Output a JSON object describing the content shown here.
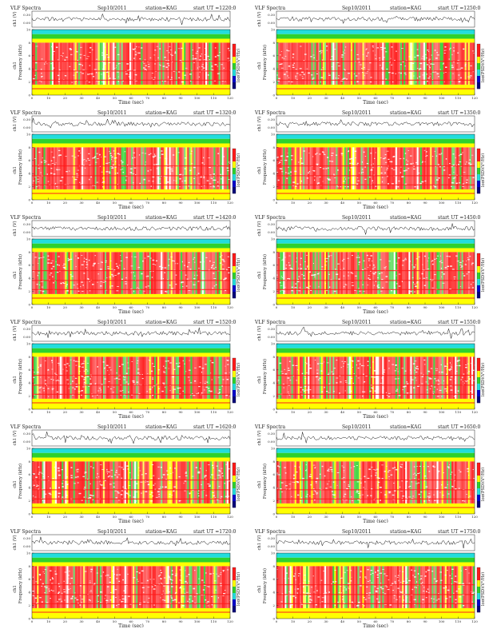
{
  "figure": {
    "header": {
      "title": "VLF Spectra",
      "date": "Sep10/2011",
      "station": "station=KAG",
      "start_label": "start UT ="
    },
    "waveform_ylabel": "ch1 (V)",
    "waveform_ticks": [
      "0.00",
      "0.30"
    ],
    "spectrogram_ylabel": "Frequency (kHz)",
    "spectrogram_ylabel_prefix": "ch1",
    "colorbar_label": "log(PSD)(V²/Hz)",
    "xlabel": "Time (sec)",
    "colors": {
      "red": "#ff1a1a",
      "yellow": "#ffff00",
      "green": "#2ed12e",
      "cyan": "#22dddd",
      "blue": "#0000cc",
      "darkblue": "#00007a",
      "axis": "#222222"
    }
  },
  "chart_data": [
    {
      "type": "heatmap",
      "start_ut": "1220:0",
      "x_ticks": [
        0,
        10,
        20,
        30,
        40,
        50,
        60,
        70,
        80,
        90,
        100,
        110,
        120
      ],
      "y_ticks": [
        0,
        2,
        4,
        6,
        8,
        10
      ],
      "xlim": [
        0,
        120
      ],
      "ylim": [
        0,
        10
      ],
      "seed": 11
    },
    {
      "type": "heatmap",
      "start_ut": "1250:0",
      "x_ticks": [
        0,
        10,
        20,
        30,
        40,
        50,
        60,
        70,
        80,
        90,
        100,
        110,
        120
      ],
      "y_ticks": [
        0,
        2,
        4,
        6,
        8,
        10
      ],
      "xlim": [
        0,
        120
      ],
      "ylim": [
        0,
        10
      ],
      "seed": 23
    },
    {
      "type": "heatmap",
      "start_ut": "1320:0",
      "x_ticks": [
        0,
        10,
        20,
        30,
        40,
        50,
        60,
        70,
        80,
        90,
        100,
        110,
        120
      ],
      "y_ticks": [
        0,
        2,
        4,
        6,
        8,
        10
      ],
      "xlim": [
        0,
        120
      ],
      "ylim": [
        0,
        10
      ],
      "seed": 37
    },
    {
      "type": "heatmap",
      "start_ut": "1350:0",
      "x_ticks": [
        0,
        10,
        20,
        30,
        40,
        50,
        60,
        70,
        80,
        90,
        100,
        110,
        120
      ],
      "y_ticks": [
        0,
        2,
        4,
        6,
        8,
        10
      ],
      "xlim": [
        0,
        120
      ],
      "ylim": [
        0,
        10
      ],
      "seed": 41
    },
    {
      "type": "heatmap",
      "start_ut": "1420:0",
      "x_ticks": [
        0,
        10,
        20,
        30,
        40,
        50,
        60,
        70,
        80,
        90,
        100,
        110,
        120
      ],
      "y_ticks": [
        0,
        2,
        4,
        6,
        8,
        10
      ],
      "xlim": [
        0,
        120
      ],
      "ylim": [
        0,
        10
      ],
      "seed": 53
    },
    {
      "type": "heatmap",
      "start_ut": "1450:0",
      "x_ticks": [
        0,
        10,
        20,
        30,
        40,
        50,
        60,
        70,
        80,
        90,
        100,
        110,
        120
      ],
      "y_ticks": [
        0,
        2,
        4,
        6,
        8,
        10
      ],
      "xlim": [
        0,
        120
      ],
      "ylim": [
        0,
        10
      ],
      "seed": 67
    },
    {
      "type": "heatmap",
      "start_ut": "1520:0",
      "x_ticks": [
        0,
        10,
        20,
        30,
        40,
        50,
        60,
        70,
        80,
        90,
        100,
        110,
        120
      ],
      "y_ticks": [
        0,
        2,
        4,
        6,
        8,
        10
      ],
      "xlim": [
        0,
        120
      ],
      "ylim": [
        0,
        10
      ],
      "seed": 71
    },
    {
      "type": "heatmap",
      "start_ut": "1550:0",
      "x_ticks": [
        0,
        10,
        20,
        30,
        40,
        50,
        60,
        70,
        80,
        90,
        100,
        110,
        120
      ],
      "y_ticks": [
        0,
        2,
        4,
        6,
        8,
        10
      ],
      "xlim": [
        0,
        120
      ],
      "ylim": [
        0,
        10
      ],
      "seed": 83
    },
    {
      "type": "heatmap",
      "start_ut": "1620:0",
      "x_ticks": [
        0,
        10,
        20,
        30,
        40,
        50,
        60,
        70,
        80,
        90,
        100,
        110,
        120
      ],
      "y_ticks": [
        0,
        2,
        4,
        6,
        8,
        10
      ],
      "xlim": [
        0,
        120
      ],
      "ylim": [
        0,
        10
      ],
      "seed": 97
    },
    {
      "type": "heatmap",
      "start_ut": "1650:0",
      "x_ticks": [
        0,
        10,
        20,
        30,
        40,
        50,
        60,
        70,
        80,
        90,
        100,
        110,
        120
      ],
      "y_ticks": [
        0,
        2,
        4,
        6,
        8,
        10
      ],
      "xlim": [
        0,
        120
      ],
      "ylim": [
        0,
        10
      ],
      "seed": 101
    },
    {
      "type": "heatmap",
      "start_ut": "1720:0",
      "x_ticks": [
        0,
        10,
        20,
        30,
        40,
        50,
        60,
        70,
        80,
        90,
        100,
        110,
        120
      ],
      "y_ticks": [
        0,
        2,
        4,
        6,
        8,
        10
      ],
      "xlim": [
        0,
        120
      ],
      "ylim": [
        0,
        10
      ],
      "seed": 113
    },
    {
      "type": "heatmap",
      "start_ut": "1750:0",
      "x_ticks": [
        0,
        10,
        20,
        30,
        40,
        50,
        60,
        70,
        80,
        90,
        100,
        110,
        120
      ],
      "y_ticks": [
        0,
        2,
        4,
        6,
        8,
        10
      ],
      "xlim": [
        0,
        120
      ],
      "ylim": [
        0,
        10
      ],
      "seed": 127
    }
  ]
}
